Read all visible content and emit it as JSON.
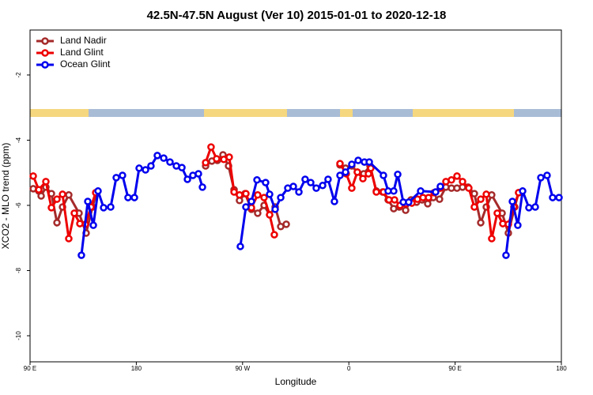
{
  "chart_data": {
    "type": "line",
    "title": "42.5N-47.5N August (Ver 10)   2015-01-01 to 2020-12-18",
    "x_label": "Longitude",
    "y_label": "XCO2 - MLO trend (ppm)",
    "xlim": [
      90,
      540
    ],
    "xticks": [
      {
        "value": 90,
        "label": "90 E"
      },
      {
        "value": 180,
        "label": "180"
      },
      {
        "value": 270,
        "label": "90 W"
      },
      {
        "value": 360,
        "label": "0"
      },
      {
        "value": 450,
        "label": "90 E"
      },
      {
        "value": 540,
        "label": "180"
      }
    ],
    "ylim": [
      -10.8,
      -0.62
    ],
    "yticks": [
      -2,
      -4,
      -6,
      -8,
      -10
    ],
    "legend": "top-left",
    "series": [
      {
        "name": "Land Nadir",
        "color": "#a52a2a",
        "x": [
          92.7,
          97.4,
          99.4,
          103.4,
          108.1,
          112.8,
          117.5,
          122.8,
          131.5,
          137.5,
          142.9,
          146.2,
          null,
          238.7,
          244.0,
          248.7,
          253.4,
          258.1,
          262.8,
          267.4,
          272.1,
          277.5,
          282.8,
          288.2,
          292.9,
          297.6,
          302.3,
          307.0,
          null,
          352.5,
          357.2,
          362.5,
          367.2,
          372.6,
          377.9,
          383.3,
          388.6,
          393.3,
          398.0,
          402.7,
          408.1,
          412.7,
          417.4,
          422.1,
          426.8,
          431.5,
          436.8,
          442.2,
          446.9,
          451.6,
          456.3,
          461.0,
          466.3,
          471.7,
          476.4,
          481.0,
          489.8,
          495.1,
          500.5,
          503.8
        ],
        "values": [
          -5.49,
          -5.56,
          -5.71,
          -5.44,
          -5.64,
          -6.53,
          -6.05,
          -5.68,
          -6.24,
          -6.85,
          -6.05,
          -5.61,
          null,
          -4.79,
          -4.64,
          -4.62,
          -4.45,
          -4.79,
          -5.52,
          -5.85,
          -5.64,
          -6.12,
          -6.24,
          -6.0,
          -6.29,
          -6.05,
          -6.65,
          -6.58,
          null,
          -4.76,
          -4.86,
          -4.79,
          -4.98,
          -5.03,
          -4.79,
          -5.56,
          -5.59,
          -5.83,
          -6.1,
          -6.05,
          -6.15,
          -5.83,
          -5.9,
          -5.83,
          -5.95,
          -5.76,
          -5.81,
          -5.44,
          -5.47,
          -5.47,
          -5.44,
          -5.44,
          -5.64,
          -6.53,
          -6.05,
          -5.68,
          -6.24,
          -6.85,
          -6.05,
          -5.61
        ]
      },
      {
        "name": "Land Glint",
        "color": "#ee0000",
        "x": [
          92.7,
          97.4,
          103.4,
          108.1,
          112.8,
          117.5,
          122.8,
          127.5,
          132.2,
          136.9,
          141.6,
          145.6,
          null,
          238.7,
          243.3,
          248.0,
          254.1,
          258.7,
          262.8,
          267.4,
          272.8,
          277.5,
          282.8,
          288.2,
          292.9,
          296.9,
          null,
          352.5,
          357.8,
          362.5,
          367.2,
          371.9,
          376.6,
          378.6,
          383.3,
          389.3,
          394.0,
          398.7,
          403.4,
          408.1,
          413.4,
          418.1,
          422.8,
          427.5,
          432.2,
          437.5,
          442.2,
          446.9,
          451.6,
          456.3,
          461.6,
          466.3,
          471.7,
          476.4,
          481.0,
          485.7,
          490.4,
          495.1,
          499.8,
          503.8
        ],
        "values": [
          -5.1,
          -5.52,
          -5.27,
          -6.07,
          -5.81,
          -5.66,
          -7.02,
          -6.24,
          -6.56,
          -6.58,
          -6.05,
          -5.61,
          null,
          -4.69,
          -4.21,
          -4.57,
          -4.59,
          -4.52,
          -5.59,
          -5.68,
          -5.64,
          -6.07,
          -5.68,
          -5.76,
          -6.29,
          -6.9,
          null,
          -4.72,
          -5.03,
          -5.47,
          -4.98,
          -5.18,
          -5.03,
          -4.86,
          -5.59,
          -5.59,
          -5.83,
          -5.83,
          -6.0,
          -5.95,
          -5.93,
          -5.81,
          -5.76,
          -5.76,
          -5.61,
          -5.47,
          -5.27,
          -5.22,
          -5.1,
          -5.27,
          -5.47,
          -6.05,
          -5.81,
          -5.66,
          -7.02,
          -6.24,
          -6.56,
          -6.58,
          -6.05,
          -5.61
        ]
      },
      {
        "name": "Ocean Glint",
        "color": "#0000ee",
        "x": [
          133.5,
          138.9,
          143.6,
          147.6,
          152.3,
          158.3,
          163.0,
          168.3,
          173.0,
          178.4,
          182.4,
          187.8,
          192.4,
          197.8,
          203.2,
          208.5,
          213.9,
          218.6,
          223.3,
          227.9,
          232.6,
          236.0,
          null,
          268.1,
          272.8,
          277.5,
          282.2,
          289.5,
          292.9,
          297.6,
          302.3,
          308.3,
          313.0,
          317.7,
          323.0,
          327.7,
          332.4,
          337.8,
          342.4,
          347.8,
          352.5,
          357.2,
          362.5,
          367.9,
          373.2,
          377.3,
          389.3,
          393.3,
          398.0,
          401.4,
          406.1,
          410.7,
          420.8,
          433.5,
          437.5,
          null,
          493.1,
          498.5,
          503.1,
          507.2,
          512.5,
          517.9,
          522.6,
          527.9,
          532.6,
          538.0
        ],
        "values": [
          -7.53,
          -5.88,
          -6.61,
          -5.56,
          -6.07,
          -6.05,
          -5.15,
          -5.08,
          -5.76,
          -5.76,
          -4.86,
          -4.91,
          -4.79,
          -4.47,
          -4.55,
          -4.67,
          -4.79,
          -4.84,
          -5.2,
          -5.08,
          -5.03,
          -5.44,
          null,
          -7.26,
          -6.05,
          -5.88,
          -5.22,
          -5.3,
          -5.66,
          -6.12,
          -5.76,
          -5.47,
          -5.42,
          -5.59,
          -5.2,
          -5.3,
          -5.47,
          -5.39,
          -5.2,
          -5.88,
          -5.08,
          -4.98,
          -4.74,
          -4.62,
          -4.67,
          -4.67,
          -5.08,
          -5.56,
          -5.56,
          -5.05,
          -5.9,
          -5.9,
          -5.56,
          -5.59,
          -5.42,
          null,
          -7.53,
          -5.88,
          -6.61,
          -5.56,
          -6.07,
          -6.05,
          -5.15,
          -5.08,
          -5.76,
          -5.76
        ]
      }
    ]
  }
}
